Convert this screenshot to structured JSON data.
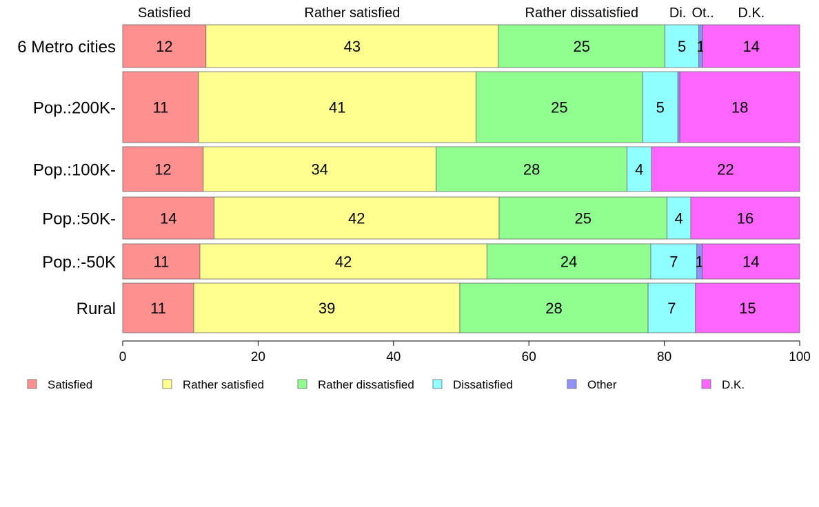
{
  "chart_data": {
    "type": "bar",
    "orientation": "horizontal",
    "stacked": true,
    "column_headers": [
      "Satisfied",
      "Rather satisfied",
      "Rather dissatisfied",
      "Di.",
      "Ot..",
      "D.K."
    ],
    "categories": [
      "6 Metro cities",
      "Pop.:200K-",
      "Pop.:100K-",
      "Pop.:50K-",
      "Pop.:-50K",
      "Rural"
    ],
    "series": [
      {
        "name": "Satisfied",
        "color": "#FF9090",
        "values": [
          12.3,
          11.2,
          11.9,
          13.5,
          11.4,
          10.5
        ]
      },
      {
        "name": "Rather satisfied",
        "color": "#FFFF90",
        "values": [
          43.2,
          41.0,
          34.4,
          42.1,
          42.4,
          39.3
        ]
      },
      {
        "name": "Rather dissatisfied",
        "color": "#90FF90",
        "values": [
          24.6,
          24.6,
          28.2,
          24.8,
          24.2,
          27.8
        ]
      },
      {
        "name": "Dissatisfied",
        "color": "#90FFFF",
        "values": [
          5.0,
          5.2,
          3.6,
          3.5,
          6.8,
          7.0
        ]
      },
      {
        "name": "Other",
        "color": "#9090FF",
        "values": [
          0.6,
          0.3,
          0.0,
          0.0,
          0.8,
          0.0
        ]
      },
      {
        "name": "D.K.",
        "color": "#FF66FF",
        "values": [
          14.3,
          17.7,
          21.9,
          16.1,
          14.4,
          15.4
        ]
      }
    ],
    "xlim": [
      0,
      100
    ],
    "xticks": [
      0,
      20,
      40,
      60,
      80,
      100
    ],
    "legend_position": "bottom",
    "grid": false
  }
}
